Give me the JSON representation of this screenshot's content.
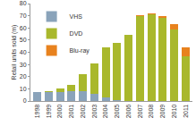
{
  "chart_data": {
    "type": "bar",
    "stacked": true,
    "y_label": "Retail units sold (m)",
    "categories": [
      "1998",
      "1999",
      "2000",
      "2001",
      "2002",
      "2003",
      "2004",
      "2005",
      "2006",
      "2007",
      "2008",
      "2009",
      "2010",
      "2011"
    ],
    "series": [
      {
        "name": "VHS",
        "color": "#8aa3ba",
        "values": [
          7,
          7,
          7.5,
          8,
          8,
          6,
          3,
          1,
          0,
          0,
          0,
          0,
          0,
          0
        ]
      },
      {
        "name": "DVD",
        "color": "#a9b82c",
        "values": [
          0.5,
          1,
          2.5,
          5,
          14,
          25,
          41,
          47,
          54,
          70,
          71,
          68,
          59,
          37
        ]
      },
      {
        "name": "Blu-ray",
        "color": "#e8821e",
        "values": [
          0,
          0,
          0,
          0,
          0,
          0,
          0,
          0,
          0,
          0.3,
          1,
          2,
          4,
          7
        ]
      }
    ],
    "ylim": [
      0,
      80
    ],
    "yticks": [
      0,
      10,
      20,
      30,
      40,
      50,
      60,
      70,
      80
    ],
    "legend": "top-left",
    "grid": false
  }
}
